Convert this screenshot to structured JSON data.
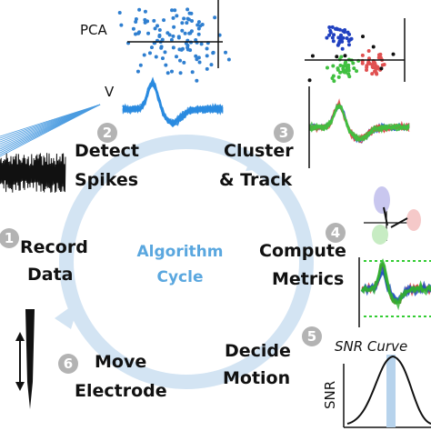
{
  "center": {
    "lines": [
      "Algorithm",
      "Cycle"
    ]
  },
  "steps": [
    {
      "number": "1",
      "lines": [
        "Record",
        "Data"
      ]
    },
    {
      "number": "2",
      "lines": [
        "Detect",
        "Spikes"
      ]
    },
    {
      "number": "3",
      "lines": [
        "Cluster",
        "& Track"
      ]
    },
    {
      "number": "4",
      "lines": [
        "Compute",
        "Metrics"
      ]
    },
    {
      "number": "5",
      "lines": [
        "Decide",
        "Motion"
      ]
    },
    {
      "number": "6",
      "lines": [
        "Move",
        "Electrode"
      ]
    }
  ],
  "plots": {
    "pca_label": "PCA",
    "v_label": "V",
    "snr_label": "SNR",
    "snr_title": "SNR Curve"
  }
}
